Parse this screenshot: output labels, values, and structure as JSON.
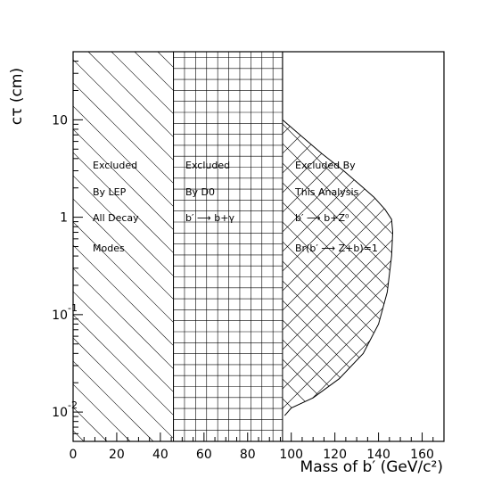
{
  "chart_data": {
    "type": "area",
    "xlabel": "Mass of b′ (GeV/c²)",
    "ylabel": "cτ (cm)",
    "xlim": [
      0,
      170
    ],
    "ylim": [
      0.005,
      50
    ],
    "y_scale": "log",
    "x_ticks": [
      {
        "value": 0,
        "label": "0"
      },
      {
        "value": 20,
        "label": "20"
      },
      {
        "value": 40,
        "label": "40"
      },
      {
        "value": 60,
        "label": "60"
      },
      {
        "value": 80,
        "label": "80"
      },
      {
        "value": 100,
        "label": "100"
      },
      {
        "value": 120,
        "label": "120"
      },
      {
        "value": 140,
        "label": "140"
      },
      {
        "value": 160,
        "label": "160"
      }
    ],
    "y_ticks": [
      {
        "value": 0.01,
        "base": "10",
        "exp": "-2"
      },
      {
        "value": 0.1,
        "base": "10",
        "exp": "-1"
      },
      {
        "value": 1,
        "base": "1",
        "exp": ""
      },
      {
        "value": 10,
        "base": "10",
        "exp": ""
      }
    ],
    "regions": [
      {
        "name": "Excluded By LEP",
        "hatch": "diagonal",
        "x_range": [
          0,
          46
        ],
        "lines": [
          "Excluded",
          "By LEP",
          "All Decay",
          "Modes"
        ]
      },
      {
        "name": "Excluded By D0",
        "hatch": "grid",
        "x_range": [
          46,
          96
        ],
        "lines": [
          "Excluded",
          "By D0",
          "b′ ⟶ b+γ"
        ]
      },
      {
        "name": "Excluded By This Analysis",
        "hatch": "crosshatch",
        "x_min": 96,
        "boundary": [
          {
            "x": 96,
            "y": 10
          },
          {
            "x": 104,
            "y": 7
          },
          {
            "x": 114,
            "y": 4.5
          },
          {
            "x": 124,
            "y": 3
          },
          {
            "x": 132,
            "y": 2.1
          },
          {
            "x": 138,
            "y": 1.6
          },
          {
            "x": 143,
            "y": 1.2
          },
          {
            "x": 146,
            "y": 0.95
          },
          {
            "x": 146.5,
            "y": 0.7
          },
          {
            "x": 146,
            "y": 0.4
          },
          {
            "x": 144,
            "y": 0.17
          },
          {
            "x": 140,
            "y": 0.08
          },
          {
            "x": 133,
            "y": 0.04
          },
          {
            "x": 122,
            "y": 0.022
          },
          {
            "x": 110,
            "y": 0.014
          },
          {
            "x": 100,
            "y": 0.011
          },
          {
            "x": 97,
            "y": 0.0092
          }
        ],
        "lines": [
          "Excluded By",
          "This Analysis",
          "b′ ⟶ b+Z⁰",
          "Br(b′ ⟶ Z+b)=1"
        ]
      }
    ],
    "grid": false,
    "legend": "none"
  }
}
